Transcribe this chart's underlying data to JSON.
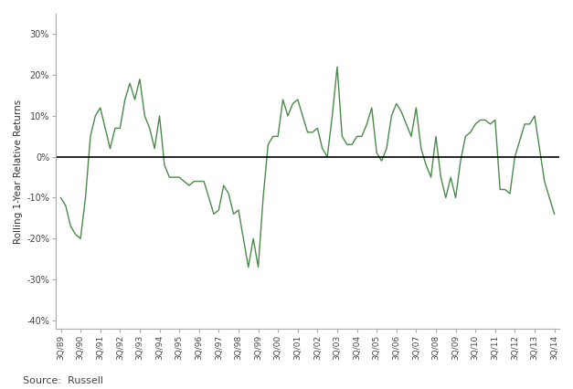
{
  "ylabel": "Rolling 1-Year Relative Returns",
  "source": "Source:  Russell",
  "line_color": "#4a8a4a",
  "background_color": "#ffffff",
  "ylim": [
    -0.42,
    0.35
  ],
  "yticks": [
    -0.4,
    -0.3,
    -0.2,
    -0.1,
    0.0,
    0.1,
    0.2,
    0.3
  ],
  "quarters_data": [
    [
      -0.1,
      "3Q/89"
    ],
    [
      -0.12,
      ""
    ],
    [
      -0.17,
      ""
    ],
    [
      -0.19,
      ""
    ],
    [
      -0.2,
      "3Q/90"
    ],
    [
      -0.1,
      ""
    ],
    [
      0.05,
      ""
    ],
    [
      0.1,
      ""
    ],
    [
      0.12,
      "3Q/91"
    ],
    [
      0.07,
      ""
    ],
    [
      0.02,
      ""
    ],
    [
      0.07,
      ""
    ],
    [
      0.07,
      "3Q/92"
    ],
    [
      0.14,
      ""
    ],
    [
      0.18,
      ""
    ],
    [
      0.14,
      ""
    ],
    [
      0.19,
      "3Q/93"
    ],
    [
      0.1,
      ""
    ],
    [
      0.07,
      ""
    ],
    [
      0.02,
      ""
    ],
    [
      0.1,
      "3Q/94"
    ],
    [
      -0.02,
      ""
    ],
    [
      -0.05,
      ""
    ],
    [
      -0.05,
      ""
    ],
    [
      -0.05,
      "3Q/95"
    ],
    [
      -0.06,
      ""
    ],
    [
      -0.07,
      ""
    ],
    [
      -0.06,
      ""
    ],
    [
      -0.06,
      "3Q/96"
    ],
    [
      -0.06,
      ""
    ],
    [
      -0.1,
      ""
    ],
    [
      -0.14,
      ""
    ],
    [
      -0.13,
      "3Q/97"
    ],
    [
      -0.07,
      ""
    ],
    [
      -0.09,
      ""
    ],
    [
      -0.14,
      ""
    ],
    [
      -0.13,
      "3Q/98"
    ],
    [
      -0.2,
      ""
    ],
    [
      -0.27,
      ""
    ],
    [
      -0.2,
      ""
    ],
    [
      -0.27,
      "3Q/99"
    ],
    [
      -0.1,
      ""
    ],
    [
      0.03,
      ""
    ],
    [
      0.05,
      ""
    ],
    [
      0.05,
      "3Q/00"
    ],
    [
      0.14,
      ""
    ],
    [
      0.1,
      ""
    ],
    [
      0.13,
      ""
    ],
    [
      0.14,
      "3Q/01"
    ],
    [
      0.1,
      ""
    ],
    [
      0.06,
      ""
    ],
    [
      0.06,
      ""
    ],
    [
      0.07,
      "3Q/02"
    ],
    [
      0.02,
      ""
    ],
    [
      0.0,
      ""
    ],
    [
      0.1,
      ""
    ],
    [
      0.22,
      "3Q/03"
    ],
    [
      0.05,
      ""
    ],
    [
      0.03,
      ""
    ],
    [
      0.03,
      ""
    ],
    [
      0.05,
      "3Q/04"
    ],
    [
      0.05,
      ""
    ],
    [
      0.08,
      ""
    ],
    [
      0.12,
      ""
    ],
    [
      0.01,
      "3Q/05"
    ],
    [
      -0.01,
      ""
    ],
    [
      0.02,
      ""
    ],
    [
      0.1,
      ""
    ],
    [
      0.13,
      "3Q/06"
    ],
    [
      0.11,
      ""
    ],
    [
      0.08,
      ""
    ],
    [
      0.05,
      ""
    ],
    [
      0.12,
      "3Q/07"
    ],
    [
      0.02,
      ""
    ],
    [
      -0.02,
      ""
    ],
    [
      -0.05,
      ""
    ],
    [
      0.05,
      "3Q/08"
    ],
    [
      -0.05,
      ""
    ],
    [
      -0.1,
      ""
    ],
    [
      -0.05,
      ""
    ],
    [
      -0.1,
      "3Q/09"
    ],
    [
      -0.01,
      ""
    ],
    [
      0.05,
      ""
    ],
    [
      0.06,
      ""
    ],
    [
      0.08,
      "3Q/10"
    ],
    [
      0.09,
      ""
    ],
    [
      0.09,
      ""
    ],
    [
      0.08,
      ""
    ],
    [
      0.09,
      "3Q/11"
    ],
    [
      -0.08,
      ""
    ],
    [
      -0.08,
      ""
    ],
    [
      -0.09,
      ""
    ],
    [
      0.0,
      "3Q/12"
    ],
    [
      0.04,
      ""
    ],
    [
      0.08,
      ""
    ],
    [
      0.08,
      ""
    ],
    [
      0.1,
      "3Q/13"
    ],
    [
      0.02,
      ""
    ],
    [
      -0.06,
      ""
    ],
    [
      -0.1,
      ""
    ],
    [
      -0.14,
      "3Q/14"
    ]
  ]
}
